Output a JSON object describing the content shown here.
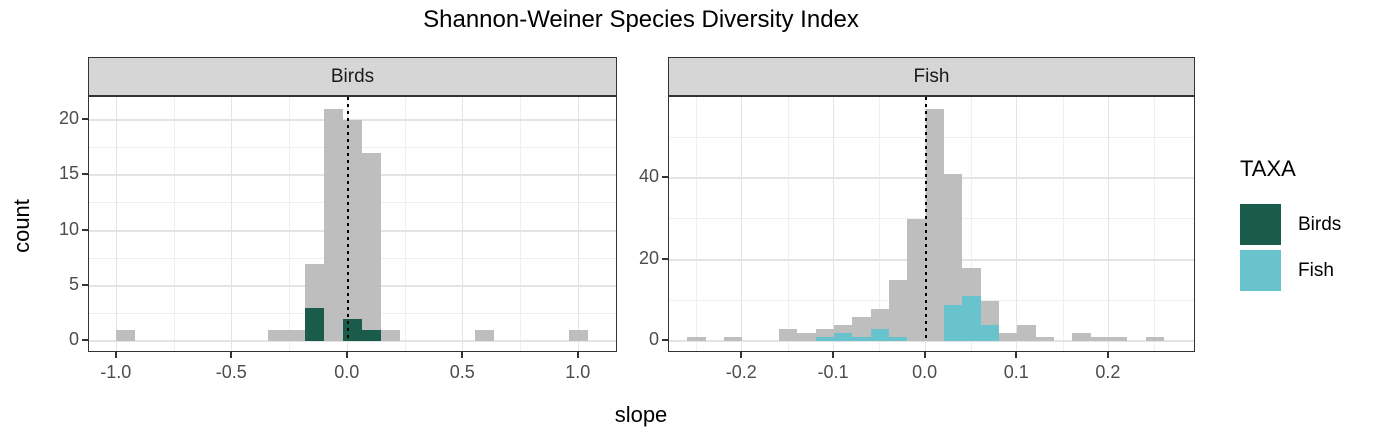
{
  "title": "Shannon-Weiner Species Diversity Index",
  "axes": {
    "x_label": "slope",
    "y_label": "count"
  },
  "legend": {
    "title": "TAXA",
    "items": [
      {
        "label": "Birds",
        "color": "#1b5b49"
      },
      {
        "label": "Fish",
        "color": "#69c3cd"
      }
    ]
  },
  "colors": {
    "all_taxa_bar": "#bebebe",
    "birds_bar": "#1b5b49",
    "fish_bar": "#69c3cd",
    "strip_bg": "#d6d6d6",
    "panel_border": "#333333",
    "grid_major": "#e4e4e4",
    "grid_minor": "#efefef",
    "tick_label": "#4d4d4d",
    "zero_line": "#000000"
  },
  "chart_data": [
    {
      "type": "bar",
      "facet": "Birds",
      "xlabel": "slope",
      "ylabel": "count",
      "xlim": [
        -1.12,
        1.17
      ],
      "ylim": [
        -1.05,
        22.05
      ],
      "x_ticks": [
        -1.0,
        -0.5,
        0.0,
        0.5,
        1.0
      ],
      "x_tick_labels": [
        "-1.0",
        "-0.5",
        "0.0",
        "0.5",
        "1.0"
      ],
      "x_minor_ticks": [
        -0.75,
        -0.25,
        0.25,
        0.75
      ],
      "y_ticks": [
        0,
        5,
        10,
        15,
        20
      ],
      "y_tick_labels": [
        "0",
        "5",
        "10",
        "15",
        "20"
      ],
      "y_minor_ticks": [
        2.5,
        7.5,
        12.5,
        17.5
      ],
      "zero_line_x": 0,
      "series": [
        {
          "name": "all",
          "color_key": "all_taxa_bar",
          "bars": [
            [
              -1.001,
              -0.919,
              1
            ],
            [
              -0.347,
              -0.265,
              1
            ],
            [
              -0.265,
              -0.184,
              1
            ],
            [
              -0.184,
              -0.102,
              7
            ],
            [
              -0.102,
              -0.02,
              21
            ],
            [
              -0.02,
              0.062,
              20
            ],
            [
              0.062,
              0.143,
              17
            ],
            [
              0.143,
              0.225,
              1
            ],
            [
              0.552,
              0.633,
              1
            ],
            [
              0.96,
              1.042,
              1
            ]
          ]
        },
        {
          "name": "Birds",
          "color_key": "birds_bar",
          "bars": [
            [
              -0.184,
              -0.102,
              3
            ],
            [
              -0.02,
              0.062,
              2
            ],
            [
              0.062,
              0.143,
              1
            ]
          ]
        }
      ]
    },
    {
      "type": "bar",
      "facet": "Fish",
      "xlabel": "slope",
      "ylabel": "count",
      "xlim": [
        -0.28,
        0.295
      ],
      "ylim": [
        -2.85,
        59.85
      ],
      "x_ticks": [
        -0.2,
        -0.1,
        0.0,
        0.1,
        0.2
      ],
      "x_tick_labels": [
        "-0.2",
        "-0.1",
        "0.0",
        "0.1",
        "0.2"
      ],
      "x_minor_ticks": [
        -0.25,
        -0.15,
        -0.05,
        0.05,
        0.15,
        0.25
      ],
      "y_ticks": [
        0,
        20,
        40
      ],
      "y_tick_labels": [
        "0",
        "20",
        "40"
      ],
      "y_minor_ticks": [
        10,
        30,
        50
      ],
      "zero_line_x": 0,
      "series": [
        {
          "name": "all",
          "color_key": "all_taxa_bar",
          "bars": [
            [
              -0.26,
              -0.24,
              1
            ],
            [
              -0.22,
              -0.2,
              1
            ],
            [
              -0.16,
              -0.14,
              3
            ],
            [
              -0.14,
              -0.12,
              2
            ],
            [
              -0.12,
              -0.1,
              3
            ],
            [
              -0.1,
              -0.08,
              4
            ],
            [
              -0.08,
              -0.06,
              6
            ],
            [
              -0.06,
              -0.04,
              8
            ],
            [
              -0.04,
              -0.02,
              15
            ],
            [
              -0.02,
              0.0,
              30
            ],
            [
              0.0,
              0.02,
              57
            ],
            [
              0.02,
              0.04,
              41
            ],
            [
              0.04,
              0.06,
              18
            ],
            [
              0.06,
              0.08,
              10
            ],
            [
              0.08,
              0.1,
              2
            ],
            [
              0.1,
              0.12,
              4
            ],
            [
              0.12,
              0.14,
              1
            ],
            [
              0.16,
              0.18,
              2
            ],
            [
              0.18,
              0.2,
              1
            ],
            [
              0.2,
              0.22,
              1
            ],
            [
              0.24,
              0.26,
              1
            ]
          ]
        },
        {
          "name": "Fish",
          "color_key": "fish_bar",
          "bars": [
            [
              -0.12,
              -0.1,
              1
            ],
            [
              -0.1,
              -0.08,
              2
            ],
            [
              -0.08,
              -0.06,
              1
            ],
            [
              -0.06,
              -0.04,
              3
            ],
            [
              -0.04,
              -0.02,
              1
            ],
            [
              0.02,
              0.04,
              9
            ],
            [
              0.04,
              0.06,
              11
            ],
            [
              0.06,
              0.08,
              4
            ]
          ]
        }
      ]
    }
  ]
}
